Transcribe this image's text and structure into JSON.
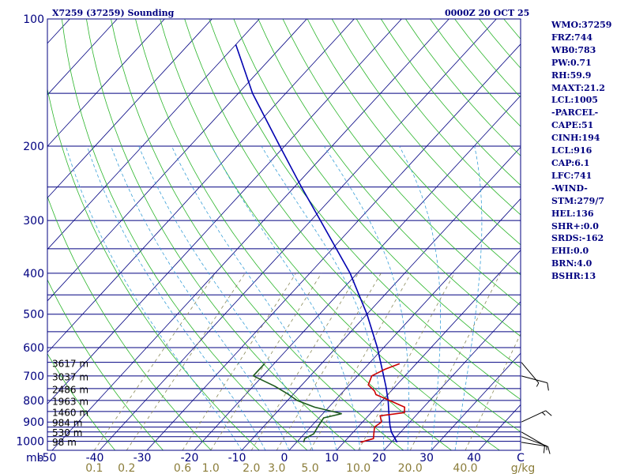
{
  "chart_data": {
    "type": "skew-t",
    "title": "X7259 (37259) Sounding",
    "datetime": "0000Z 20 OCT 25",
    "pressure_label": "mb",
    "pressure_ticks": [
      "100",
      "200",
      "300",
      "400",
      "500",
      "600",
      "700",
      "800",
      "900",
      "1000"
    ],
    "pressure_ticks_values": [
      100,
      200,
      300,
      400,
      500,
      600,
      700,
      800,
      900,
      1000
    ],
    "isobars": [
      100,
      150,
      200,
      250,
      300,
      350,
      400,
      450,
      500,
      550,
      600,
      650,
      700,
      750,
      800,
      850,
      900,
      925,
      950,
      975,
      1000
    ],
    "temperature_ticks": [
      "-50",
      "-40",
      "-30",
      "-20",
      "-10",
      "0",
      "10",
      "20",
      "30",
      "40",
      "C"
    ],
    "temperature_ticks_values": [
      -50,
      -40,
      -30,
      -20,
      -10,
      0,
      10,
      20,
      30,
      40
    ],
    "mixing_ratio_ticks": [
      "0.1",
      "0.2",
      "0.6",
      "1.0",
      "2.0",
      "3.0",
      "5.0",
      "10.0",
      "20.0",
      "40.0",
      "g/kg"
    ],
    "mixing_ratio_ticks_values": [
      0.1,
      0.2,
      0.6,
      1.0,
      2.0,
      3.0,
      5.0,
      10.0,
      20.0,
      40.0
    ],
    "heights": [
      {
        "label": "3617 m",
        "p": 655
      },
      {
        "label": "3037 m",
        "p": 705
      },
      {
        "label": "2486 m",
        "p": 755
      },
      {
        "label": "1963 m",
        "p": 805
      },
      {
        "label": "1460 m",
        "p": 855
      },
      {
        "label": "984 m",
        "p": 905
      },
      {
        "label": "530 m",
        "p": 955
      },
      {
        "label": "98 m",
        "p": 1005
      }
    ],
    "temperature_profile": [
      {
        "p": 1005,
        "t": 13.5
      },
      {
        "p": 985,
        "t": 15.5
      },
      {
        "p": 955,
        "t": 14.5
      },
      {
        "p": 925,
        "t": 13.5
      },
      {
        "p": 900,
        "t": 14.0
      },
      {
        "p": 870,
        "t": 12.5
      },
      {
        "p": 855,
        "t": 17.0
      },
      {
        "p": 830,
        "t": 16.0
      },
      {
        "p": 800,
        "t": 11.5
      },
      {
        "p": 775,
        "t": 7.5
      },
      {
        "p": 760,
        "t": 6.5
      },
      {
        "p": 735,
        "t": 4.0
      },
      {
        "p": 700,
        "t": 3.0
      },
      {
        "p": 675,
        "t": 4.5
      },
      {
        "p": 655,
        "t": 6.5
      }
    ],
    "dewpoint_profile": [
      {
        "p": 1005,
        "t": 1.5
      },
      {
        "p": 985,
        "t": 1.0
      },
      {
        "p": 960,
        "t": 2.0
      },
      {
        "p": 925,
        "t": 1.5
      },
      {
        "p": 880,
        "t": 1.0
      },
      {
        "p": 860,
        "t": 4.0
      },
      {
        "p": 830,
        "t": -3.0
      },
      {
        "p": 800,
        "t": -8.0
      },
      {
        "p": 770,
        "t": -11.5
      },
      {
        "p": 740,
        "t": -15.5
      },
      {
        "p": 700,
        "t": -22.0
      },
      {
        "p": 655,
        "t": -22.0
      }
    ],
    "parcel_profile": [
      {
        "p": 1005,
        "t": 21.2
      },
      {
        "p": 950,
        "t": 18.0
      },
      {
        "p": 916,
        "t": 16.4
      },
      {
        "p": 850,
        "t": 13.5
      },
      {
        "p": 800,
        "t": 11.2
      },
      {
        "p": 741,
        "t": 8.0
      },
      {
        "p": 700,
        "t": 5.5
      },
      {
        "p": 600,
        "t": -1.3
      },
      {
        "p": 500,
        "t": -10.0
      },
      {
        "p": 400,
        "t": -21.5
      },
      {
        "p": 300,
        "t": -38.0
      },
      {
        "p": 250,
        "t": -48.5
      },
      {
        "p": 200,
        "t": -61.0
      },
      {
        "p": 150,
        "t": -77.0
      },
      {
        "p": 115,
        "t": -90.0
      }
    ],
    "wind_barbs": [
      {
        "p": 1005,
        "dir": 279,
        "speed": 10
      },
      {
        "p": 975,
        "dir": 290,
        "speed": 5
      },
      {
        "p": 950,
        "dir": 300,
        "speed": 10
      },
      {
        "p": 900,
        "dir": 245,
        "speed": 15
      },
      {
        "p": 700,
        "dir": 285,
        "speed": 10
      },
      {
        "p": 650,
        "dir": 320,
        "speed": 5
      }
    ]
  },
  "stats": [
    "WMO:37259",
    "FRZ:744",
    "WB0:783",
    "PW:0.71",
    "RH:59.9",
    "MAXT:21.2",
    "LCL:1005",
    "-PARCEL-",
    "CAPE:51",
    "CINH:194",
    "LCL:916",
    "CAP:6.1",
    "LFC:741",
    "-WIND-",
    "STM:279/7",
    "HEL:136",
    "SHR+:0.0",
    "SRDS:-162",
    "EHI:0.0",
    "BRN:4.0",
    "BSHR:13"
  ]
}
